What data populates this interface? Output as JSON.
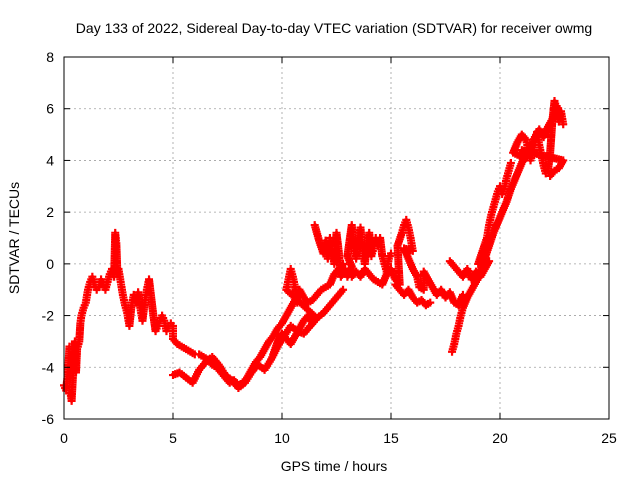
{
  "chart_data": {
    "type": "scatter",
    "title": "Day 133 of 2022, Sidereal Day-to-day VTEC variation (SDTVAR) for receiver owmg",
    "xlabel": "GPS time / hours",
    "ylabel": "SDTVAR / TECUs",
    "xlim": [
      0,
      25
    ],
    "ylim": [
      -6,
      8
    ],
    "x_ticks": [
      0,
      5,
      10,
      15,
      20,
      25
    ],
    "y_ticks": [
      -6,
      -4,
      -2,
      0,
      2,
      4,
      6,
      8
    ],
    "grid": true,
    "series": [
      {
        "name": "SDTVAR",
        "color": "#ff0000",
        "marker": "+",
        "points": [
          [
            0.0,
            -4.7
          ],
          [
            0.1,
            -4.9
          ],
          [
            0.2,
            -4.0
          ],
          [
            0.25,
            -3.2
          ],
          [
            0.3,
            -5.0
          ],
          [
            0.35,
            -5.3
          ],
          [
            0.4,
            -4.5
          ],
          [
            0.45,
            -3.5
          ],
          [
            0.5,
            -3.0
          ],
          [
            0.55,
            -4.2
          ],
          [
            0.6,
            -3.3
          ],
          [
            0.7,
            -3.0
          ],
          [
            0.75,
            -2.3
          ],
          [
            0.8,
            -2.0
          ],
          [
            0.9,
            -1.7
          ],
          [
            1.0,
            -1.5
          ],
          [
            1.1,
            -1.0
          ],
          [
            1.2,
            -0.7
          ],
          [
            1.3,
            -0.5
          ],
          [
            1.4,
            -0.8
          ],
          [
            1.5,
            -1.0
          ],
          [
            1.6,
            -0.9
          ],
          [
            1.7,
            -0.6
          ],
          [
            1.8,
            -0.8
          ],
          [
            1.9,
            -1.0
          ],
          [
            2.0,
            -0.7
          ],
          [
            2.1,
            -0.4
          ],
          [
            2.2,
            -0.2
          ],
          [
            2.3,
            -0.5
          ],
          [
            2.35,
            1.2
          ],
          [
            2.4,
            0.8
          ],
          [
            2.45,
            -0.4
          ],
          [
            2.5,
            -0.2
          ],
          [
            2.6,
            -0.7
          ],
          [
            2.7,
            -1.2
          ],
          [
            2.8,
            -1.6
          ],
          [
            2.9,
            -1.9
          ],
          [
            3.0,
            -2.4
          ],
          [
            3.1,
            -1.6
          ],
          [
            3.2,
            -1.2
          ],
          [
            3.3,
            -1.5
          ],
          [
            3.4,
            -1.1
          ],
          [
            3.5,
            -1.7
          ],
          [
            3.6,
            -2.2
          ],
          [
            3.7,
            -1.5
          ],
          [
            3.8,
            -1.0
          ],
          [
            3.9,
            -0.6
          ],
          [
            4.0,
            -1.3
          ],
          [
            4.1,
            -2.0
          ],
          [
            4.2,
            -2.6
          ],
          [
            4.3,
            -2.4
          ],
          [
            4.4,
            -2.2
          ],
          [
            4.5,
            -2.0
          ],
          [
            4.6,
            -2.2
          ],
          [
            4.7,
            -2.6
          ],
          [
            4.8,
            -2.4
          ],
          [
            4.9,
            -2.3
          ],
          [
            5.0,
            -2.4
          ],
          [
            5.0,
            -2.9
          ],
          [
            5.2,
            -3.1
          ],
          [
            5.4,
            -3.2
          ],
          [
            5.6,
            -3.3
          ],
          [
            5.8,
            -3.4
          ],
          [
            6.0,
            -3.5
          ],
          [
            6.2,
            -3.5
          ],
          [
            6.4,
            -3.6
          ],
          [
            6.6,
            -3.7
          ],
          [
            6.8,
            -3.9
          ],
          [
            7.0,
            -4.0
          ],
          [
            7.2,
            -4.2
          ],
          [
            7.4,
            -4.4
          ],
          [
            7.6,
            -4.6
          ],
          [
            7.8,
            -4.5
          ],
          [
            8.0,
            -4.7
          ],
          [
            8.2,
            -4.6
          ],
          [
            8.4,
            -4.4
          ],
          [
            8.6,
            -4.1
          ],
          [
            8.8,
            -3.8
          ],
          [
            9.0,
            -3.6
          ],
          [
            9.2,
            -3.3
          ],
          [
            9.4,
            -3.0
          ],
          [
            9.6,
            -2.8
          ],
          [
            9.8,
            -2.5
          ],
          [
            10.0,
            -2.3
          ],
          [
            10.2,
            -2.0
          ],
          [
            10.4,
            -1.7
          ],
          [
            10.6,
            -1.4
          ],
          [
            10.8,
            -1.0
          ],
          [
            11.0,
            -1.3
          ],
          [
            11.2,
            -1.5
          ],
          [
            11.4,
            -1.4
          ],
          [
            11.6,
            -1.2
          ],
          [
            11.8,
            -1.0
          ],
          [
            12.0,
            -0.9
          ],
          [
            12.2,
            -0.8
          ],
          [
            12.4,
            -0.4
          ],
          [
            12.6,
            -0.2
          ],
          [
            12.8,
            0.0
          ],
          [
            5.0,
            -4.3
          ],
          [
            5.3,
            -4.2
          ],
          [
            5.6,
            -4.4
          ],
          [
            5.9,
            -4.6
          ],
          [
            6.2,
            -4.1
          ],
          [
            6.5,
            -3.8
          ],
          [
            6.8,
            -3.6
          ],
          [
            7.1,
            -3.9
          ],
          [
            7.4,
            -4.3
          ],
          [
            7.7,
            -4.5
          ],
          [
            8.0,
            -4.8
          ],
          [
            8.3,
            -4.6
          ],
          [
            8.6,
            -4.2
          ],
          [
            8.9,
            -3.9
          ],
          [
            9.2,
            -4.1
          ],
          [
            9.5,
            -3.7
          ],
          [
            9.8,
            -3.2
          ],
          [
            10.1,
            -2.8
          ],
          [
            10.4,
            -2.4
          ],
          [
            10.7,
            -2.6
          ],
          [
            11.0,
            -2.7
          ],
          [
            11.3,
            -2.4
          ],
          [
            11.6,
            -2.1
          ],
          [
            11.9,
            -1.9
          ],
          [
            12.2,
            -1.6
          ],
          [
            12.5,
            -1.3
          ],
          [
            12.8,
            -1.0
          ],
          [
            9.6,
            -3.5
          ],
          [
            9.8,
            -3.0
          ],
          [
            10.0,
            -2.7
          ],
          [
            10.2,
            -2.9
          ],
          [
            10.4,
            -3.1
          ],
          [
            10.6,
            -2.8
          ],
          [
            10.8,
            -2.5
          ],
          [
            11.0,
            -2.2
          ],
          [
            11.2,
            -2.0
          ],
          [
            11.4,
            -2.3
          ],
          [
            11.6,
            -2.1
          ],
          [
            10.2,
            -1.0
          ],
          [
            10.3,
            -0.6
          ],
          [
            10.4,
            -0.2
          ],
          [
            10.5,
            -0.5
          ],
          [
            10.6,
            -0.9
          ],
          [
            10.7,
            -1.5
          ],
          [
            11.5,
            1.5
          ],
          [
            11.7,
            0.9
          ],
          [
            11.9,
            0.4
          ],
          [
            12.0,
            0.9
          ],
          [
            12.1,
            0.2
          ],
          [
            12.2,
            1.0
          ],
          [
            12.3,
            0.5
          ],
          [
            12.4,
            0.0
          ],
          [
            12.5,
            1.2
          ],
          [
            12.6,
            0.5
          ],
          [
            12.7,
            -0.5
          ],
          [
            12.9,
            -0.2
          ],
          [
            13.0,
            -0.5
          ],
          [
            13.2,
            -0.1
          ],
          [
            13.0,
            0.3
          ],
          [
            13.1,
            0.9
          ],
          [
            13.2,
            1.5
          ],
          [
            13.3,
            0.6
          ],
          [
            13.4,
            0.2
          ],
          [
            13.5,
            1.0
          ],
          [
            13.6,
            1.4
          ],
          [
            13.7,
            0.5
          ],
          [
            13.8,
            0.0
          ],
          [
            13.9,
            0.8
          ],
          [
            14.0,
            1.2
          ],
          [
            14.1,
            0.3
          ],
          [
            14.2,
            0.6
          ],
          [
            14.3,
            1.0
          ],
          [
            14.4,
            0.7
          ],
          [
            14.5,
            1.0
          ],
          [
            14.6,
            0.3
          ],
          [
            14.7,
            0.0
          ],
          [
            14.8,
            -0.3
          ],
          [
            14.9,
            0.2
          ],
          [
            15.0,
            0.4
          ],
          [
            13.2,
            -0.5
          ],
          [
            13.4,
            -0.3
          ],
          [
            13.6,
            -0.5
          ],
          [
            13.8,
            -0.2
          ],
          [
            14.0,
            -0.4
          ],
          [
            14.2,
            -0.6
          ],
          [
            14.4,
            -0.7
          ],
          [
            14.6,
            -0.8
          ],
          [
            14.8,
            -0.4
          ],
          [
            15.0,
            -0.2
          ],
          [
            15.2,
            -0.6
          ],
          [
            15.4,
            -0.8
          ],
          [
            15.3,
            0.7
          ],
          [
            15.5,
            1.2
          ],
          [
            15.6,
            1.5
          ],
          [
            15.7,
            1.7
          ],
          [
            15.8,
            1.4
          ],
          [
            15.9,
            1.0
          ],
          [
            16.0,
            0.5
          ],
          [
            15.6,
            0.6
          ],
          [
            15.8,
            0.2
          ],
          [
            16.0,
            -0.2
          ],
          [
            16.2,
            -0.5
          ],
          [
            16.3,
            -0.9
          ],
          [
            16.5,
            -1.0
          ],
          [
            16.5,
            -0.3
          ],
          [
            16.7,
            -0.6
          ],
          [
            16.9,
            -0.9
          ],
          [
            17.1,
            -1.2
          ],
          [
            17.3,
            -1.0
          ],
          [
            17.5,
            -1.3
          ],
          [
            17.7,
            -1.1
          ],
          [
            17.9,
            -1.5
          ],
          [
            18.1,
            -1.6
          ],
          [
            18.3,
            -1.2
          ],
          [
            15.2,
            -0.8
          ],
          [
            15.4,
            -1.0
          ],
          [
            15.6,
            -1.2
          ],
          [
            15.8,
            -1.0
          ],
          [
            16.0,
            -1.3
          ],
          [
            16.2,
            -1.5
          ],
          [
            16.4,
            -1.4
          ],
          [
            16.6,
            -1.6
          ],
          [
            16.8,
            -1.5
          ],
          [
            17.7,
            0.1
          ],
          [
            17.9,
            -0.1
          ],
          [
            18.1,
            -0.3
          ],
          [
            18.3,
            -0.5
          ],
          [
            18.5,
            -0.2
          ],
          [
            18.7,
            -0.6
          ],
          [
            18.9,
            -0.3
          ],
          [
            19.1,
            -0.5
          ],
          [
            19.3,
            -0.2
          ],
          [
            19.5,
            0.1
          ],
          [
            17.8,
            -3.4
          ],
          [
            17.9,
            -3.1
          ],
          [
            18.0,
            -2.7
          ],
          [
            18.1,
            -2.4
          ],
          [
            18.2,
            -2.0
          ],
          [
            18.3,
            -1.7
          ],
          [
            18.5,
            -1.3
          ],
          [
            18.7,
            -1.0
          ],
          [
            18.9,
            -0.7
          ],
          [
            19.1,
            -0.3
          ],
          [
            19.3,
            0.2
          ],
          [
            19.0,
            0.0
          ],
          [
            19.2,
            0.5
          ],
          [
            19.4,
            1.0
          ],
          [
            19.5,
            1.5
          ],
          [
            19.6,
            1.9
          ],
          [
            19.7,
            2.2
          ],
          [
            19.8,
            2.5
          ],
          [
            19.9,
            2.8
          ],
          [
            20.0,
            3.0
          ],
          [
            20.1,
            2.7
          ],
          [
            20.2,
            2.9
          ],
          [
            20.3,
            3.3
          ],
          [
            20.4,
            3.6
          ],
          [
            20.5,
            3.9
          ],
          [
            19.1,
            -0.4
          ],
          [
            19.3,
            0.2
          ],
          [
            19.5,
            0.7
          ],
          [
            19.7,
            1.2
          ],
          [
            19.9,
            1.6
          ],
          [
            20.1,
            2.0
          ],
          [
            20.3,
            2.4
          ],
          [
            20.5,
            2.9
          ],
          [
            20.7,
            3.3
          ],
          [
            20.9,
            3.7
          ],
          [
            21.1,
            4.1
          ],
          [
            20.6,
            4.3
          ],
          [
            20.8,
            4.7
          ],
          [
            21.0,
            5.0
          ],
          [
            21.2,
            4.8
          ],
          [
            21.3,
            4.4
          ],
          [
            21.4,
            4.0
          ],
          [
            21.5,
            4.3
          ],
          [
            21.6,
            4.7
          ],
          [
            21.7,
            5.1
          ],
          [
            21.8,
            4.6
          ],
          [
            21.9,
            4.2
          ],
          [
            22.0,
            3.8
          ],
          [
            22.1,
            3.5
          ],
          [
            22.2,
            3.6
          ],
          [
            22.3,
            4.3
          ],
          [
            22.4,
            5.5
          ],
          [
            22.5,
            6.3
          ],
          [
            22.6,
            6.0
          ],
          [
            22.7,
            5.5
          ],
          [
            22.8,
            5.9
          ],
          [
            22.9,
            5.4
          ],
          [
            22.3,
            3.4
          ],
          [
            22.5,
            3.6
          ],
          [
            22.7,
            3.7
          ],
          [
            22.9,
            4.0
          ],
          [
            21.0,
            4.4
          ],
          [
            21.2,
            4.1
          ],
          [
            21.4,
            4.5
          ],
          [
            21.6,
            4.9
          ],
          [
            21.8,
            5.2
          ],
          [
            22.0,
            4.9
          ],
          [
            22.2,
            5.3
          ],
          [
            22.4,
            5.6
          ],
          [
            22.6,
            6.1
          ],
          [
            22.8,
            5.7
          ]
        ]
      }
    ]
  }
}
